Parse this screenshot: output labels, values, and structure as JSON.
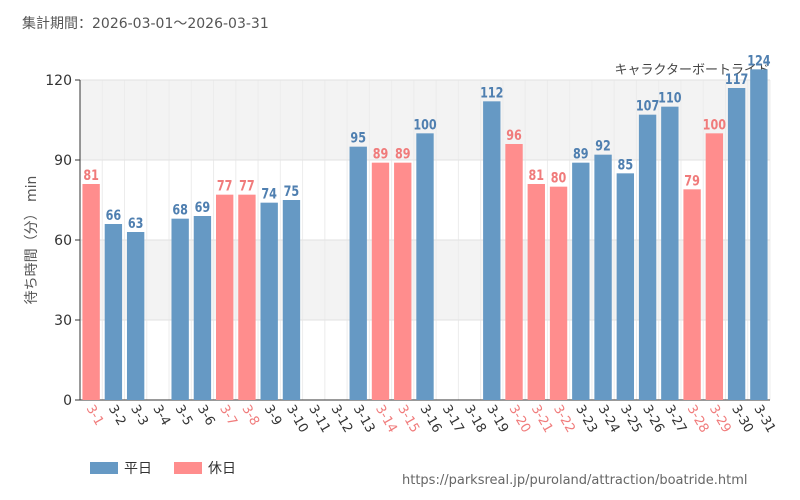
{
  "header": {
    "period": "集計期間：2026-03-01〜2026-03-31"
  },
  "source_url": "https://parksreal.jp/puroland/attraction/boatride.html",
  "legend": {
    "weekday": "平日",
    "holiday": "休日"
  },
  "colors": {
    "weekday": "#6699c4",
    "holiday": "#ff8d8d",
    "weekday_label": "#4f7fb0",
    "holiday_label": "#f07b7b"
  },
  "chart_data": {
    "type": "bar",
    "title": "キャラクターボートライド",
    "ylabel": "待ち時間（分） min",
    "xlabel": "",
    "ylim": [
      0,
      120
    ],
    "yticks": [
      0,
      30,
      60,
      90,
      120
    ],
    "grid": true,
    "legend_position": "bottom-left",
    "categories": [
      "3-1",
      "3-2",
      "3-3",
      "3-4",
      "3-5",
      "3-6",
      "3-7",
      "3-8",
      "3-9",
      "3-10",
      "3-11",
      "3-12",
      "3-13",
      "3-14",
      "3-15",
      "3-16",
      "3-17",
      "3-18",
      "3-19",
      "3-20",
      "3-21",
      "3-22",
      "3-23",
      "3-24",
      "3-25",
      "3-26",
      "3-27",
      "3-28",
      "3-29",
      "3-30",
      "3-31"
    ],
    "values": [
      81,
      66,
      63,
      null,
      68,
      69,
      77,
      77,
      74,
      75,
      null,
      null,
      95,
      89,
      89,
      100,
      null,
      null,
      112,
      96,
      81,
      80,
      89,
      92,
      85,
      107,
      110,
      79,
      100,
      117,
      124
    ],
    "day_type": [
      "holiday",
      "weekday",
      "weekday",
      "weekday",
      "weekday",
      "weekday",
      "holiday",
      "holiday",
      "weekday",
      "weekday",
      "weekday",
      "weekday",
      "weekday",
      "holiday",
      "holiday",
      "weekday",
      "weekday",
      "weekday",
      "weekday",
      "holiday",
      "holiday",
      "holiday",
      "weekday",
      "weekday",
      "weekday",
      "weekday",
      "weekday",
      "holiday",
      "holiday",
      "weekday",
      "weekday"
    ]
  }
}
